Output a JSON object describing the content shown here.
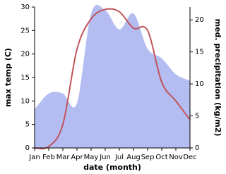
{
  "chart_data": {
    "type": "line",
    "x_label": "date (month)",
    "y_label": "max temp (C)",
    "y2_label": "med. precipitation (kg/m2)",
    "categories": [
      "Jan",
      "Feb",
      "Mar",
      "Apr",
      "May",
      "Jun",
      "Jul",
      "Aug",
      "Sep",
      "Oct",
      "Nov",
      "Dec"
    ],
    "series": [
      {
        "name": "max temp",
        "type": "line",
        "color": "#c0545a",
        "values": [
          0,
          0.3,
          5,
          21,
          27.5,
          29.5,
          29,
          25.5,
          25,
          14,
          10,
          6
        ]
      },
      {
        "name": "med. precipitation",
        "type": "area",
        "axis": "y2",
        "color": "#b4bdf2",
        "values": [
          6,
          8.5,
          8.5,
          7,
          21,
          21.5,
          18.5,
          21,
          15.5,
          14,
          11.5,
          10.5
        ]
      }
    ],
    "ylim": [
      0,
      30
    ],
    "yticks": [
      0,
      5,
      10,
      15,
      20,
      25,
      30
    ],
    "y2lim": [
      0,
      22
    ],
    "y2ticks": [
      0,
      5,
      10,
      15,
      20
    ]
  }
}
